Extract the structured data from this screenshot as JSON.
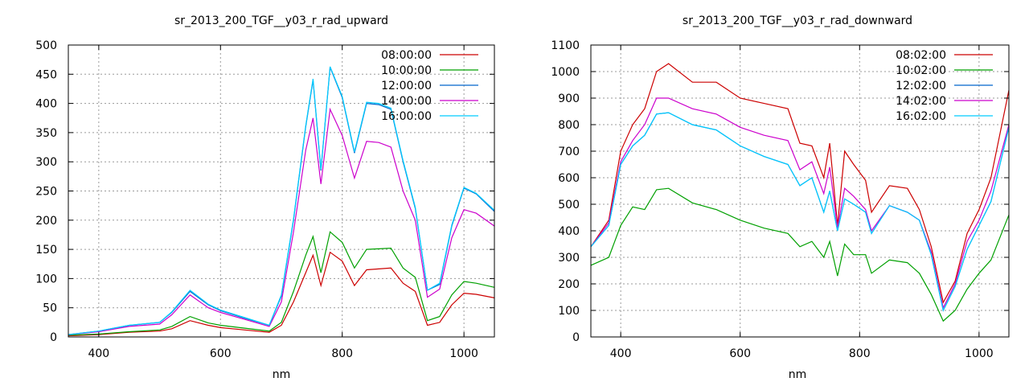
{
  "chart_data": [
    {
      "type": "line",
      "title": "sr_2013_200_TGF__y03_r_rad_upward",
      "xlabel": "nm",
      "ylabel": "",
      "xlim": [
        350,
        1050
      ],
      "ylim": [
        0,
        500
      ],
      "xticks": [
        400,
        600,
        800,
        1000
      ],
      "yticks": [
        0,
        50,
        100,
        150,
        200,
        250,
        300,
        350,
        400,
        450,
        500
      ],
      "grid": true,
      "legend_position": "top-right",
      "series": [
        {
          "name": "08:00:00",
          "color": "#cc0000",
          "x": [
            350,
            400,
            450,
            500,
            520,
            550,
            580,
            600,
            640,
            680,
            700,
            720,
            740,
            752,
            765,
            780,
            800,
            820,
            840,
            880,
            900,
            920,
            940,
            960,
            980,
            1000,
            1020,
            1050
          ],
          "y": [
            2,
            4,
            8,
            10,
            14,
            28,
            20,
            16,
            12,
            8,
            20,
            60,
            110,
            140,
            88,
            145,
            130,
            88,
            115,
            118,
            92,
            78,
            20,
            25,
            55,
            75,
            73,
            67
          ]
        },
        {
          "name": "10:00:00",
          "color": "#00a000",
          "x": [
            350,
            400,
            450,
            500,
            520,
            550,
            580,
            600,
            640,
            680,
            700,
            720,
            740,
            752,
            765,
            780,
            800,
            820,
            840,
            880,
            900,
            920,
            940,
            960,
            980,
            1000,
            1020,
            1050
          ],
          "y": [
            3,
            5,
            9,
            12,
            18,
            35,
            24,
            20,
            15,
            10,
            25,
            78,
            140,
            172,
            110,
            180,
            162,
            118,
            150,
            152,
            118,
            102,
            28,
            35,
            72,
            95,
            92,
            85
          ]
        },
        {
          "name": "12:00:00",
          "color": "#0066cc",
          "x": [
            350,
            400,
            450,
            500,
            520,
            550,
            580,
            600,
            640,
            680,
            700,
            720,
            740,
            752,
            765,
            780,
            800,
            820,
            840,
            860,
            880,
            900,
            920,
            940,
            960,
            980,
            1000,
            1020,
            1050
          ],
          "y": [
            4,
            10,
            20,
            25,
            42,
            78,
            55,
            45,
            32,
            20,
            70,
            200,
            360,
            440,
            285,
            462,
            410,
            315,
            400,
            398,
            390,
            300,
            220,
            80,
            90,
            190,
            255,
            245,
            215
          ]
        },
        {
          "name": "14:00:00",
          "color": "#cc00cc",
          "x": [
            350,
            400,
            450,
            500,
            520,
            550,
            580,
            600,
            640,
            680,
            700,
            720,
            740,
            752,
            765,
            780,
            800,
            820,
            840,
            860,
            880,
            900,
            920,
            940,
            960,
            980,
            1000,
            1020,
            1050
          ],
          "y": [
            4,
            9,
            18,
            22,
            38,
            72,
            50,
            42,
            30,
            18,
            60,
            180,
            320,
            375,
            262,
            390,
            345,
            272,
            335,
            333,
            325,
            250,
            200,
            68,
            82,
            170,
            218,
            212,
            190
          ]
        },
        {
          "name": "16:00:00",
          "color": "#00ccff",
          "x": [
            350,
            400,
            450,
            500,
            520,
            550,
            580,
            600,
            640,
            680,
            700,
            720,
            740,
            752,
            765,
            780,
            800,
            820,
            840,
            860,
            880,
            900,
            920,
            940,
            960,
            980,
            1000,
            1020,
            1050
          ],
          "y": [
            4,
            10,
            20,
            25,
            43,
            80,
            56,
            46,
            33,
            20,
            72,
            202,
            362,
            442,
            287,
            463,
            412,
            317,
            402,
            400,
            392,
            302,
            222,
            80,
            92,
            192,
            256,
            246,
            217
          ]
        }
      ]
    },
    {
      "type": "line",
      "title": "sr_2013_200_TGF__y03_r_rad_downward",
      "xlabel": "nm",
      "ylabel": "",
      "xlim": [
        350,
        1050
      ],
      "ylim": [
        0,
        1100
      ],
      "xticks": [
        400,
        600,
        800,
        1000
      ],
      "yticks": [
        0,
        100,
        200,
        300,
        400,
        500,
        600,
        700,
        800,
        900,
        1000,
        1100
      ],
      "grid": true,
      "legend_position": "top-right",
      "series": [
        {
          "name": "08:02:00",
          "color": "#cc0000",
          "x": [
            350,
            380,
            400,
            420,
            440,
            460,
            480,
            520,
            560,
            600,
            640,
            680,
            700,
            720,
            740,
            750,
            763,
            775,
            790,
            810,
            820,
            850,
            880,
            900,
            920,
            940,
            960,
            980,
            1000,
            1020,
            1050
          ],
          "y": [
            340,
            440,
            700,
            800,
            860,
            1000,
            1030,
            960,
            960,
            900,
            880,
            860,
            730,
            720,
            600,
            730,
            420,
            700,
            650,
            590,
            470,
            570,
            560,
            480,
            340,
            130,
            210,
            390,
            480,
            600,
            930
          ]
        },
        {
          "name": "10:02:00",
          "color": "#00a000",
          "x": [
            350,
            380,
            400,
            420,
            440,
            460,
            480,
            520,
            560,
            600,
            640,
            680,
            700,
            720,
            740,
            750,
            763,
            775,
            790,
            810,
            820,
            850,
            880,
            900,
            920,
            940,
            960,
            980,
            1000,
            1020,
            1050
          ],
          "y": [
            270,
            300,
            420,
            490,
            480,
            555,
            560,
            505,
            480,
            440,
            410,
            390,
            340,
            360,
            300,
            360,
            230,
            350,
            310,
            310,
            240,
            290,
            280,
            240,
            160,
            60,
            100,
            180,
            240,
            290,
            460
          ]
        },
        {
          "name": "12:02:00",
          "color": "#0066cc",
          "x": [
            350,
            380,
            400,
            420,
            440,
            460,
            480,
            520,
            560,
            600,
            640,
            680,
            700,
            720,
            740,
            750,
            763,
            775,
            790,
            810,
            820,
            850,
            880,
            900,
            920,
            940,
            960,
            980,
            1000,
            1020,
            1050
          ],
          "y": [
            340,
            420,
            650,
            720,
            760,
            840,
            845,
            800,
            780,
            720,
            680,
            650,
            570,
            600,
            470,
            550,
            400,
            520,
            500,
            470,
            390,
            495,
            470,
            440,
            310,
            100,
            190,
            330,
            420,
            510,
            790
          ]
        },
        {
          "name": "14:02:00",
          "color": "#cc00cc",
          "x": [
            350,
            380,
            400,
            420,
            440,
            460,
            480,
            520,
            560,
            600,
            640,
            680,
            700,
            720,
            740,
            750,
            763,
            775,
            790,
            810,
            820,
            850,
            880,
            900,
            920,
            940,
            960,
            980,
            1000,
            1020,
            1050
          ],
          "y": [
            340,
            430,
            660,
            740,
            800,
            900,
            900,
            860,
            840,
            790,
            760,
            740,
            630,
            660,
            540,
            640,
            410,
            560,
            530,
            480,
            400,
            495,
            470,
            440,
            320,
            110,
            200,
            360,
            440,
            550,
            800
          ]
        },
        {
          "name": "16:02:00",
          "color": "#00ccff",
          "x": [
            350,
            380,
            400,
            420,
            440,
            460,
            480,
            520,
            560,
            600,
            640,
            680,
            700,
            720,
            740,
            750,
            763,
            775,
            790,
            810,
            820,
            850,
            880,
            900,
            920,
            940,
            960,
            980,
            1000,
            1020,
            1050
          ],
          "y": [
            340,
            420,
            650,
            720,
            760,
            840,
            845,
            800,
            780,
            720,
            680,
            650,
            570,
            600,
            470,
            550,
            400,
            520,
            500,
            470,
            390,
            495,
            470,
            440,
            310,
            100,
            190,
            330,
            420,
            510,
            790
          ]
        }
      ]
    }
  ]
}
